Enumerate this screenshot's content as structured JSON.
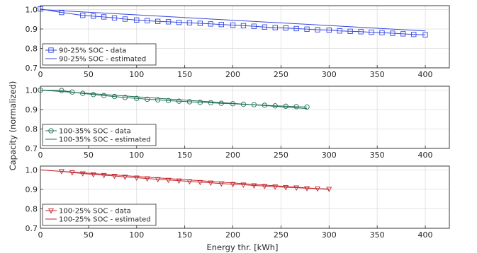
{
  "figure": {
    "ylabel": "Capacity (normalized)",
    "xlabel": "Energy thr. [kWh]"
  },
  "chart_data": [
    {
      "type": "line",
      "xlim": [
        0,
        425
      ],
      "ylim": [
        0.7,
        1.02
      ],
      "xticks": [
        "0",
        "50",
        "100",
        "150",
        "200",
        "250",
        "300",
        "350",
        "400"
      ],
      "yticks": [
        "0.7",
        "0.8",
        "0.9",
        "1.0"
      ],
      "grid": true,
      "legend_position": "bottom-left",
      "series": [
        {
          "name": "90-25% SOC - data",
          "kind": "data",
          "marker": "square",
          "color": "#3347e0",
          "x": [
            0,
            22,
            44,
            55,
            66,
            77,
            88,
            100,
            111,
            122,
            133,
            144,
            155,
            166,
            177,
            188,
            200,
            211,
            222,
            233,
            244,
            255,
            266,
            277,
            288,
            300,
            311,
            322,
            333,
            344,
            355,
            366,
            377,
            388,
            400
          ],
          "y": [
            1.003,
            0.985,
            0.97,
            0.966,
            0.962,
            0.957,
            0.951,
            0.946,
            0.943,
            0.939,
            0.937,
            0.934,
            0.932,
            0.929,
            0.926,
            0.923,
            0.92,
            0.917,
            0.914,
            0.91,
            0.907,
            0.905,
            0.902,
            0.899,
            0.896,
            0.894,
            0.89,
            0.888,
            0.886,
            0.883,
            0.881,
            0.878,
            0.875,
            0.872,
            0.87
          ]
        },
        {
          "name": "90-25% SOC - estimated",
          "kind": "line",
          "color": "#3347e0",
          "x": [
            0,
            400
          ],
          "y": [
            1.0,
            0.89
          ]
        }
      ]
    },
    {
      "type": "line",
      "xlim": [
        0,
        425
      ],
      "ylim": [
        0.7,
        1.02
      ],
      "xticks": [
        "0",
        "50",
        "100",
        "150",
        "200",
        "250",
        "300",
        "350",
        "400"
      ],
      "yticks": [
        "0.7",
        "0.8",
        "0.9",
        "1.0"
      ],
      "grid": true,
      "legend_position": "bottom-left",
      "series": [
        {
          "name": "100-35% SOC - data",
          "kind": "data",
          "marker": "circle",
          "color": "#1f6f52",
          "x": [
            0,
            22,
            33,
            44,
            55,
            66,
            77,
            88,
            100,
            111,
            122,
            133,
            144,
            155,
            166,
            177,
            188,
            200,
            211,
            222,
            233,
            244,
            255,
            266,
            277
          ],
          "y": [
            1.0,
            0.998,
            0.99,
            0.983,
            0.977,
            0.972,
            0.967,
            0.962,
            0.957,
            0.953,
            0.95,
            0.946,
            0.943,
            0.94,
            0.937,
            0.935,
            0.932,
            0.93,
            0.927,
            0.925,
            0.922,
            0.919,
            0.917,
            0.915,
            0.913
          ]
        },
        {
          "name": "100-35% SOC - estimated",
          "kind": "line",
          "color": "#1f6f52",
          "x": [
            0,
            277
          ],
          "y": [
            1.0,
            0.905
          ]
        }
      ]
    },
    {
      "type": "line",
      "xlim": [
        0,
        425
      ],
      "ylim": [
        0.7,
        1.02
      ],
      "xticks": [
        "0",
        "50",
        "100",
        "150",
        "200",
        "250",
        "300",
        "350",
        "400"
      ],
      "yticks": [
        "0.7",
        "0.8",
        "0.9",
        "1.0"
      ],
      "grid": true,
      "legend_position": "bottom-left",
      "series": [
        {
          "name": "100-25% SOC - data",
          "kind": "data",
          "marker": "triangle-down",
          "color": "#c2272d",
          "x": [
            22,
            33,
            44,
            55,
            66,
            77,
            88,
            100,
            111,
            122,
            133,
            144,
            155,
            166,
            177,
            188,
            200,
            211,
            222,
            233,
            244,
            255,
            266,
            277,
            288,
            300
          ],
          "y": [
            0.993,
            0.987,
            0.982,
            0.977,
            0.973,
            0.969,
            0.964,
            0.96,
            0.956,
            0.952,
            0.948,
            0.945,
            0.941,
            0.937,
            0.934,
            0.93,
            0.927,
            0.924,
            0.92,
            0.917,
            0.914,
            0.911,
            0.909,
            0.906,
            0.904,
            0.902
          ]
        },
        {
          "name": "100-25% SOC - estimated",
          "kind": "line",
          "color": "#c2272d",
          "x": [
            0,
            300
          ],
          "y": [
            1.0,
            0.9
          ]
        }
      ]
    }
  ]
}
